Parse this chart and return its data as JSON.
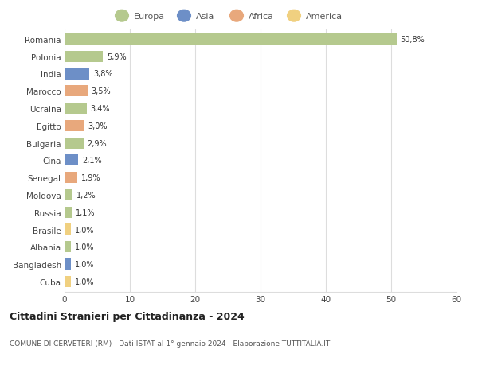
{
  "countries": [
    "Romania",
    "Polonia",
    "India",
    "Marocco",
    "Ucraina",
    "Egitto",
    "Bulgaria",
    "Cina",
    "Senegal",
    "Moldova",
    "Russia",
    "Brasile",
    "Albania",
    "Bangladesh",
    "Cuba"
  ],
  "values": [
    50.8,
    5.9,
    3.8,
    3.5,
    3.4,
    3.0,
    2.9,
    2.1,
    1.9,
    1.2,
    1.1,
    1.0,
    1.0,
    1.0,
    1.0
  ],
  "labels": [
    "50,8%",
    "5,9%",
    "3,8%",
    "3,5%",
    "3,4%",
    "3,0%",
    "2,9%",
    "2,1%",
    "1,9%",
    "1,2%",
    "1,1%",
    "1,0%",
    "1,0%",
    "1,0%",
    "1,0%"
  ],
  "continents": [
    "Europa",
    "Europa",
    "Asia",
    "Africa",
    "Europa",
    "Africa",
    "Europa",
    "Asia",
    "Africa",
    "Europa",
    "Europa",
    "America",
    "Europa",
    "Asia",
    "America"
  ],
  "colors": {
    "Europa": "#b5c98e",
    "Asia": "#6d8fc7",
    "Africa": "#e8a87c",
    "America": "#f0d080"
  },
  "title": "Cittadini Stranieri per Cittadinanza - 2024",
  "subtitle": "COMUNE DI CERVETERI (RM) - Dati ISTAT al 1° gennaio 2024 - Elaborazione TUTTITALIA.IT",
  "xlim": [
    0,
    60
  ],
  "xticks": [
    0,
    10,
    20,
    30,
    40,
    50,
    60
  ],
  "background_color": "#ffffff",
  "grid_color": "#dddddd"
}
